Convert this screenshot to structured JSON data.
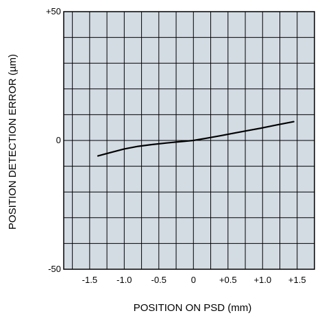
{
  "chart_data": {
    "type": "line",
    "title": "",
    "xlabel": "POSITION ON PSD  (mm)",
    "ylabel": "POSITION DETECTION ERROR  (µm)",
    "xlim": [
      -1.875,
      1.75
    ],
    "ylim": [
      -50,
      50
    ],
    "grid": true,
    "x_ticks": [
      {
        "value": -1.5,
        "label": "-1.5"
      },
      {
        "value": -1.0,
        "label": "-1.0"
      },
      {
        "value": -0.5,
        "label": "-0.5"
      },
      {
        "value": 0,
        "label": "0"
      },
      {
        "value": 0.5,
        "label": "+0.5"
      },
      {
        "value": 1.0,
        "label": "+1.0"
      },
      {
        "value": 1.5,
        "label": "+1.5"
      }
    ],
    "y_ticks": [
      {
        "value": 50,
        "label": "+50"
      },
      {
        "value": 0,
        "label": "0"
      },
      {
        "value": -50,
        "label": "-50"
      }
    ],
    "series": [
      {
        "x": [
          -1.38,
          -1.2,
          -1.0,
          -0.8,
          -0.6,
          -0.4,
          -0.2,
          0.0,
          0.2,
          0.4,
          0.6,
          0.8,
          1.0,
          1.2,
          1.45
        ],
        "y": [
          -6.0,
          -4.7,
          -3.3,
          -2.3,
          -1.6,
          -1.0,
          -0.5,
          0.0,
          0.9,
          1.9,
          2.9,
          3.9,
          4.9,
          6.0,
          7.3
        ]
      }
    ],
    "colors": {
      "plot_background": "#d3dbe3",
      "grid": "#000000",
      "line": "#000000"
    }
  }
}
